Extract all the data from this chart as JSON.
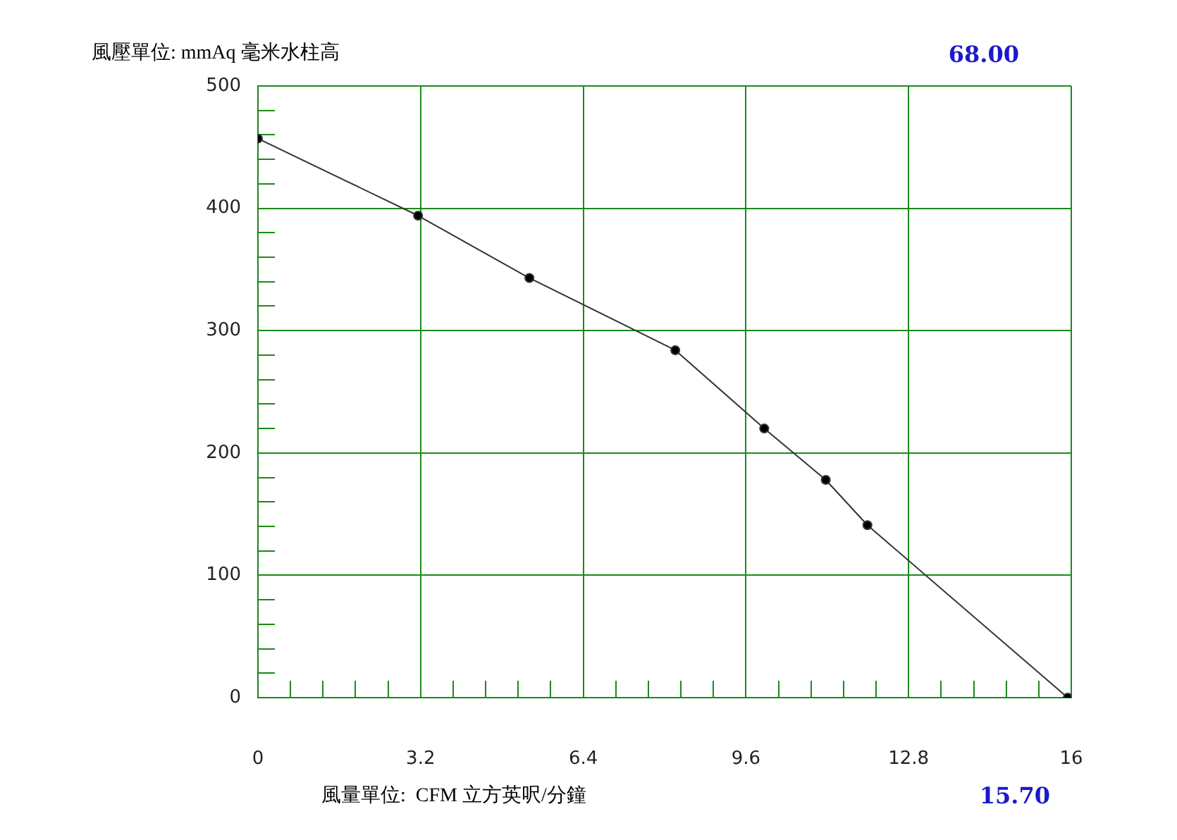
{
  "chart_data": {
    "type": "line",
    "ylabel": "風壓單位: mmAq 毫米水柱高",
    "xlabel": "風量單位:  CFM 立方英呎/分鐘",
    "annotations": [
      "68.00",
      "15.70"
    ],
    "x": [
      0,
      3.15,
      5.34,
      8.21,
      9.96,
      11.17,
      11.99,
      15.93
    ],
    "series": [
      {
        "color": "#333333",
        "values": [
          457,
          394,
          343,
          284,
          220,
          178,
          141,
          0
        ]
      }
    ],
    "xlim": [
      0,
      16
    ],
    "xticks": [
      0,
      {
        "value": 0.64,
        "label": null
      },
      {
        "value": 1.28,
        "label": null
      },
      {
        "value": 1.92,
        "label": null
      },
      {
        "value": 2.56,
        "label": null
      },
      3.2,
      {
        "value": 3.84,
        "label": null
      },
      {
        "value": 4.48,
        "label": null
      },
      {
        "value": 5.12,
        "label": null
      },
      {
        "value": 5.76,
        "label": null
      },
      6.4,
      {
        "value": 7.04,
        "label": null
      },
      {
        "value": 7.68,
        "label": null
      },
      {
        "value": 8.32,
        "label": null
      },
      {
        "value": 8.96,
        "label": null
      },
      9.6,
      {
        "value": 10.24,
        "label": null
      },
      {
        "value": 10.88,
        "label": null
      },
      {
        "value": 11.52,
        "label": null
      },
      {
        "value": 12.16,
        "label": null
      },
      12.8,
      {
        "value": 13.44,
        "label": null
      },
      {
        "value": 14.08,
        "label": null
      },
      {
        "value": 14.72,
        "label": null
      },
      {
        "value": 15.36,
        "label": null
      },
      16
    ],
    "ylim": [
      0,
      500
    ],
    "yticks": [
      0,
      {
        "value": 20,
        "label": null
      },
      {
        "value": 40,
        "label": null
      },
      {
        "value": 60,
        "label": null
      },
      {
        "value": 80,
        "label": null
      },
      100,
      {
        "value": 120,
        "label": null
      },
      {
        "value": 140,
        "label": null
      },
      {
        "value": 160,
        "label": null
      },
      {
        "value": 180,
        "label": null
      },
      200,
      {
        "value": 220,
        "label": null
      },
      {
        "value": 240,
        "label": null
      },
      {
        "value": 260,
        "label": null
      },
      {
        "value": 280,
        "label": null
      },
      300,
      {
        "value": 320,
        "label": null
      },
      {
        "value": 340,
        "label": null
      },
      {
        "value": 360,
        "label": null
      },
      {
        "value": 380,
        "label": null
      },
      400,
      {
        "value": 420,
        "label": null
      },
      {
        "value": 440,
        "label": null
      },
      {
        "value": 460,
        "label": null
      },
      {
        "value": 480,
        "label": null
      },
      500
    ],
    "grid": true,
    "marker": "circle",
    "line_style": "solid",
    "legend": false
  }
}
